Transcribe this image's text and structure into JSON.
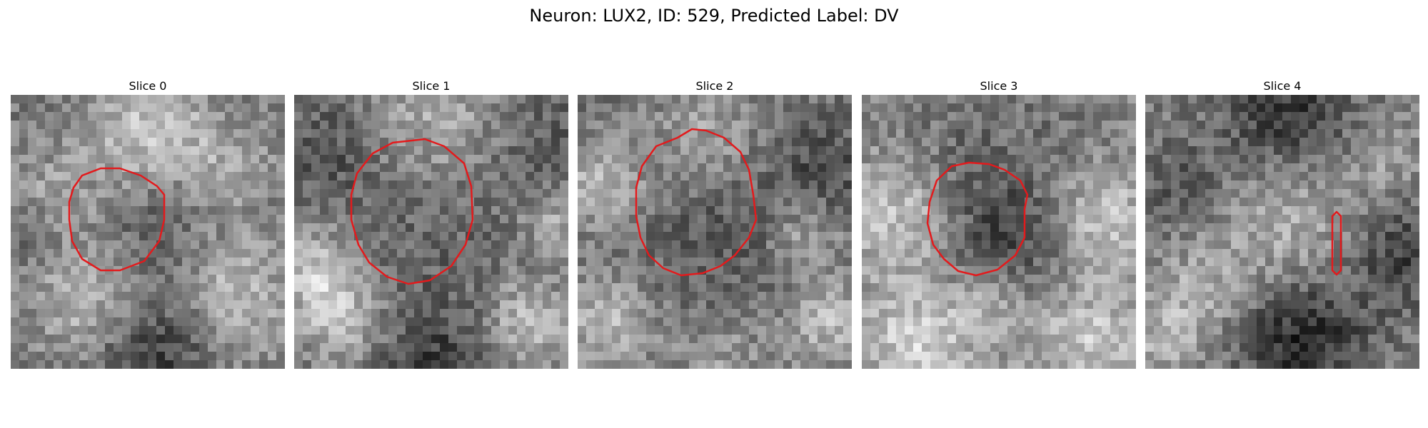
{
  "figure": {
    "title": "Neuron: LUX2, ID: 529, Predicted Label: DV",
    "neuron": "LUX2",
    "id": 529,
    "predicted_label": "DV"
  },
  "slices": [
    {
      "title": "Slice 0",
      "image": "grayscale microscopy patch",
      "contour_color": "#e31a1c"
    },
    {
      "title": "Slice 1",
      "image": "grayscale microscopy patch",
      "contour_color": "#e31a1c"
    },
    {
      "title": "Slice 2",
      "image": "grayscale microscopy patch",
      "contour_color": "#e31a1c"
    },
    {
      "title": "Slice 3",
      "image": "grayscale microscopy patch",
      "contour_color": "#e31a1c"
    },
    {
      "title": "Slice 4",
      "image": "grayscale microscopy patch",
      "contour_color": "#e31a1c"
    }
  ]
}
